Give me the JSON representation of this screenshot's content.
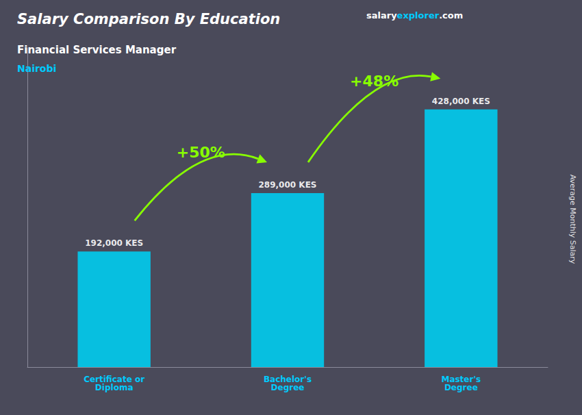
{
  "chart_data": {
    "type": "bar",
    "title": "Salary Comparison By Education",
    "subtitle": "Financial Services Manager",
    "location": "Nairobi",
    "source": [
      "salary",
      "explorer",
      ".com"
    ],
    "ylabel": "Average Monthly Salary",
    "categories": [
      "Certificate or\nDiploma",
      "Bachelor's\nDegree",
      "Master's\nDegree"
    ],
    "values": [
      192000,
      289000,
      428000
    ],
    "value_labels": [
      "192,000 KES",
      "289,000 KES",
      "428,000 KES"
    ],
    "data_labels": true,
    "color": "#00ccee",
    "ylim": [
      0,
      530000
    ],
    "tick_labels": "x",
    "grid": false,
    "changes": [
      {
        "from": 0,
        "to": 1,
        "value": 50,
        "label": "+50%"
      },
      {
        "from": 1,
        "to": 2,
        "value": 48,
        "label": "+48%"
      }
    ]
  }
}
